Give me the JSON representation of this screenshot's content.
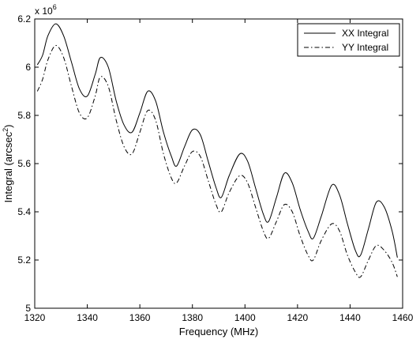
{
  "chart_data": {
    "type": "line",
    "xlabel": "Frequency (MHz)",
    "ylabel_main": "Integral (arcsec",
    "ylabel_sup": "2",
    "ylabel_close": ")",
    "exponent_label": "x 10",
    "exponent_power": "6",
    "scale_factor": 1000000,
    "xlim": [
      1320,
      1460
    ],
    "ylim": [
      5.0,
      6.2
    ],
    "x_ticks": [
      1320,
      1340,
      1360,
      1380,
      1400,
      1420,
      1440,
      1460
    ],
    "y_ticks": [
      5,
      5.2,
      5.4,
      5.6,
      5.8,
      6,
      6.2
    ],
    "x_tick_labels": [
      "1320",
      "1340",
      "1360",
      "1380",
      "1400",
      "1420",
      "1440",
      "1460"
    ],
    "y_tick_labels": [
      "5",
      "5.2",
      "5.4",
      "5.6",
      "5.8",
      "6",
      "6.2"
    ],
    "grid": false,
    "legend_position": "top-right",
    "series": [
      {
        "name": "XX Integral",
        "style": "solid",
        "color": "#000000",
        "x": [
          1321,
          1323,
          1325,
          1328,
          1331,
          1334,
          1337,
          1340,
          1343,
          1345,
          1348,
          1351,
          1354,
          1357,
          1360,
          1363,
          1366,
          1369,
          1372,
          1374,
          1377,
          1380,
          1383,
          1386,
          1389,
          1391,
          1394,
          1398,
          1401,
          1404,
          1407,
          1409,
          1412,
          1415,
          1418,
          1421,
          1424,
          1426,
          1429,
          1433,
          1436,
          1439,
          1442,
          1444,
          1447,
          1450,
          1453,
          1456,
          1458
        ],
        "y": [
          6.01,
          6.05,
          6.13,
          6.18,
          6.13,
          6.02,
          5.91,
          5.88,
          5.97,
          6.04,
          6.0,
          5.86,
          5.76,
          5.73,
          5.81,
          5.9,
          5.86,
          5.73,
          5.63,
          5.59,
          5.67,
          5.74,
          5.72,
          5.61,
          5.5,
          5.46,
          5.55,
          5.64,
          5.61,
          5.5,
          5.39,
          5.36,
          5.46,
          5.56,
          5.52,
          5.41,
          5.32,
          5.29,
          5.38,
          5.51,
          5.47,
          5.35,
          5.24,
          5.22,
          5.33,
          5.44,
          5.42,
          5.32,
          5.21
        ]
      },
      {
        "name": "YY Integral",
        "style": "dashdot",
        "color": "#000000",
        "x": [
          1321,
          1323,
          1325,
          1328,
          1331,
          1334,
          1337,
          1340,
          1343,
          1345,
          1348,
          1351,
          1354,
          1357,
          1360,
          1363,
          1366,
          1369,
          1372,
          1374,
          1377,
          1380,
          1383,
          1386,
          1389,
          1391,
          1394,
          1398,
          1401,
          1404,
          1407,
          1409,
          1412,
          1415,
          1418,
          1421,
          1424,
          1426,
          1429,
          1433,
          1436,
          1439,
          1442,
          1444,
          1447,
          1450,
          1453,
          1456,
          1458
        ],
        "y": [
          5.9,
          5.95,
          6.03,
          6.09,
          6.04,
          5.92,
          5.81,
          5.79,
          5.88,
          5.96,
          5.92,
          5.78,
          5.67,
          5.64,
          5.73,
          5.82,
          5.78,
          5.64,
          5.54,
          5.52,
          5.59,
          5.65,
          5.63,
          5.53,
          5.43,
          5.4,
          5.48,
          5.55,
          5.52,
          5.42,
          5.32,
          5.29,
          5.36,
          5.43,
          5.4,
          5.3,
          5.22,
          5.2,
          5.28,
          5.35,
          5.32,
          5.22,
          5.15,
          5.13,
          5.2,
          5.26,
          5.24,
          5.19,
          5.13
        ]
      }
    ]
  }
}
